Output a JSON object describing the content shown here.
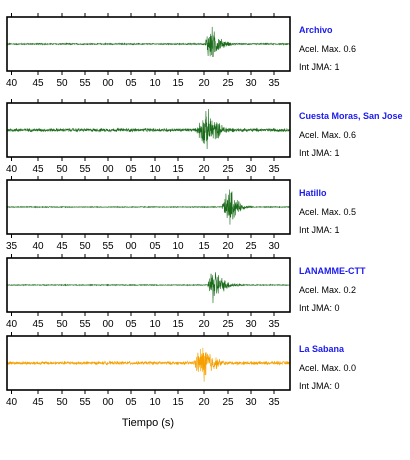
{
  "chart_data": {
    "type": "line",
    "xlabel": "Tiempo (s)",
    "panels": [
      {
        "station": "Archivo",
        "peak_label": "Acel. Max. 0.6",
        "jma_label": "Int JMA: 1",
        "color": "#1a6b1a",
        "tick_labels": [
          "40",
          "45",
          "50",
          "55",
          "00",
          "05",
          "10",
          "15",
          "20",
          "25",
          "30",
          "35"
        ],
        "baseline_amplitude": 0.03,
        "bursts": [
          {
            "start": 0.7,
            "peak": 0.72,
            "end": 0.86,
            "amplitude": 0.95
          }
        ]
      },
      {
        "station": "Cuesta Moras, San Jose",
        "peak_label": "Acel. Max. 0.6",
        "jma_label": "Int JMA: 1",
        "color": "#1a6b1a",
        "tick_labels": [
          "40",
          "45",
          "50",
          "55",
          "00",
          "05",
          "10",
          "15",
          "20",
          "25",
          "30",
          "35"
        ],
        "baseline_amplitude": 0.08,
        "bursts": [
          {
            "start": 0.67,
            "peak": 0.71,
            "end": 0.9,
            "amplitude": 0.95
          }
        ]
      },
      {
        "station": "Hatillo",
        "peak_label": "Acel. Max. 0.5",
        "jma_label": "Int JMA: 1",
        "color": "#1a6b1a",
        "tick_labels": [
          "35",
          "40",
          "45",
          "50",
          "55",
          "00",
          "05",
          "10",
          "15",
          "20",
          "25",
          "30"
        ],
        "baseline_amplitude": 0.02,
        "bursts": [
          {
            "start": 0.76,
            "peak": 0.79,
            "end": 0.9,
            "amplitude": 0.98
          }
        ]
      },
      {
        "station": "LANAMME-CTT",
        "peak_label": "Acel. Max. 0.2",
        "jma_label": "Int JMA: 0",
        "color": "#1a6b1a",
        "tick_labels": [
          "40",
          "45",
          "50",
          "55",
          "00",
          "05",
          "10",
          "15",
          "20",
          "25",
          "30",
          "35"
        ],
        "baseline_amplitude": 0.02,
        "bursts": [
          {
            "start": 0.71,
            "peak": 0.73,
            "end": 0.88,
            "amplitude": 0.95
          }
        ]
      },
      {
        "station": "La Sabana",
        "peak_label": "Acel. Max. 0.0",
        "jma_label": "Int JMA: 0",
        "color": "#f5a000",
        "tick_labels": [
          "40",
          "45",
          "50",
          "55",
          "00",
          "05",
          "10",
          "15",
          "20",
          "25",
          "30",
          "35"
        ],
        "baseline_amplitude": 0.08,
        "bursts": [
          {
            "start": 0.66,
            "peak": 0.7,
            "end": 0.86,
            "amplitude": 0.95
          }
        ]
      }
    ]
  }
}
